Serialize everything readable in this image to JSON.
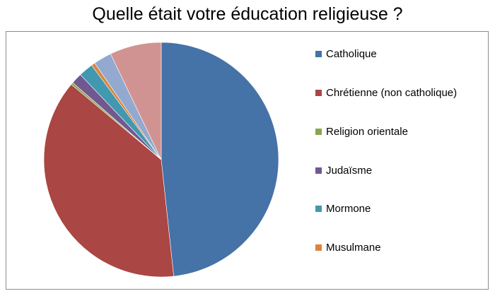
{
  "chart_data": {
    "type": "pie",
    "title": "Quelle était votre éducation religieuse ?",
    "legend_position": "right",
    "slices": [
      {
        "label": "Catholique",
        "value": 48.3,
        "color": "#4572A7"
      },
      {
        "label": "Chrétienne (non catholique)",
        "value": 37.8,
        "color": "#AA4643"
      },
      {
        "label": "Religion orientale",
        "value": 0.3,
        "color": "#89A54E"
      },
      {
        "label": "Judaïsme",
        "value": 1.5,
        "color": "#71588F"
      },
      {
        "label": "Mormone",
        "value": 2.0,
        "color": "#4198AF"
      },
      {
        "label": "Musulmane",
        "value": 0.5,
        "color": "#DB843D"
      },
      {
        "label": "",
        "value": 2.5,
        "color": "#93A9CF"
      },
      {
        "label": "",
        "value": 7.1,
        "color": "#D19392"
      }
    ],
    "legend": [
      {
        "label": "Catholique",
        "color": "#4572A7"
      },
      {
        "label": "Chrétienne (non catholique)",
        "color": "#AA4643"
      },
      {
        "label": "Religion orientale",
        "color": "#89A54E"
      },
      {
        "label": "Judaïsme",
        "color": "#71588F"
      },
      {
        "label": "Mormone",
        "color": "#4198AF"
      },
      {
        "label": "Musulmane",
        "color": "#DB843D"
      }
    ]
  }
}
